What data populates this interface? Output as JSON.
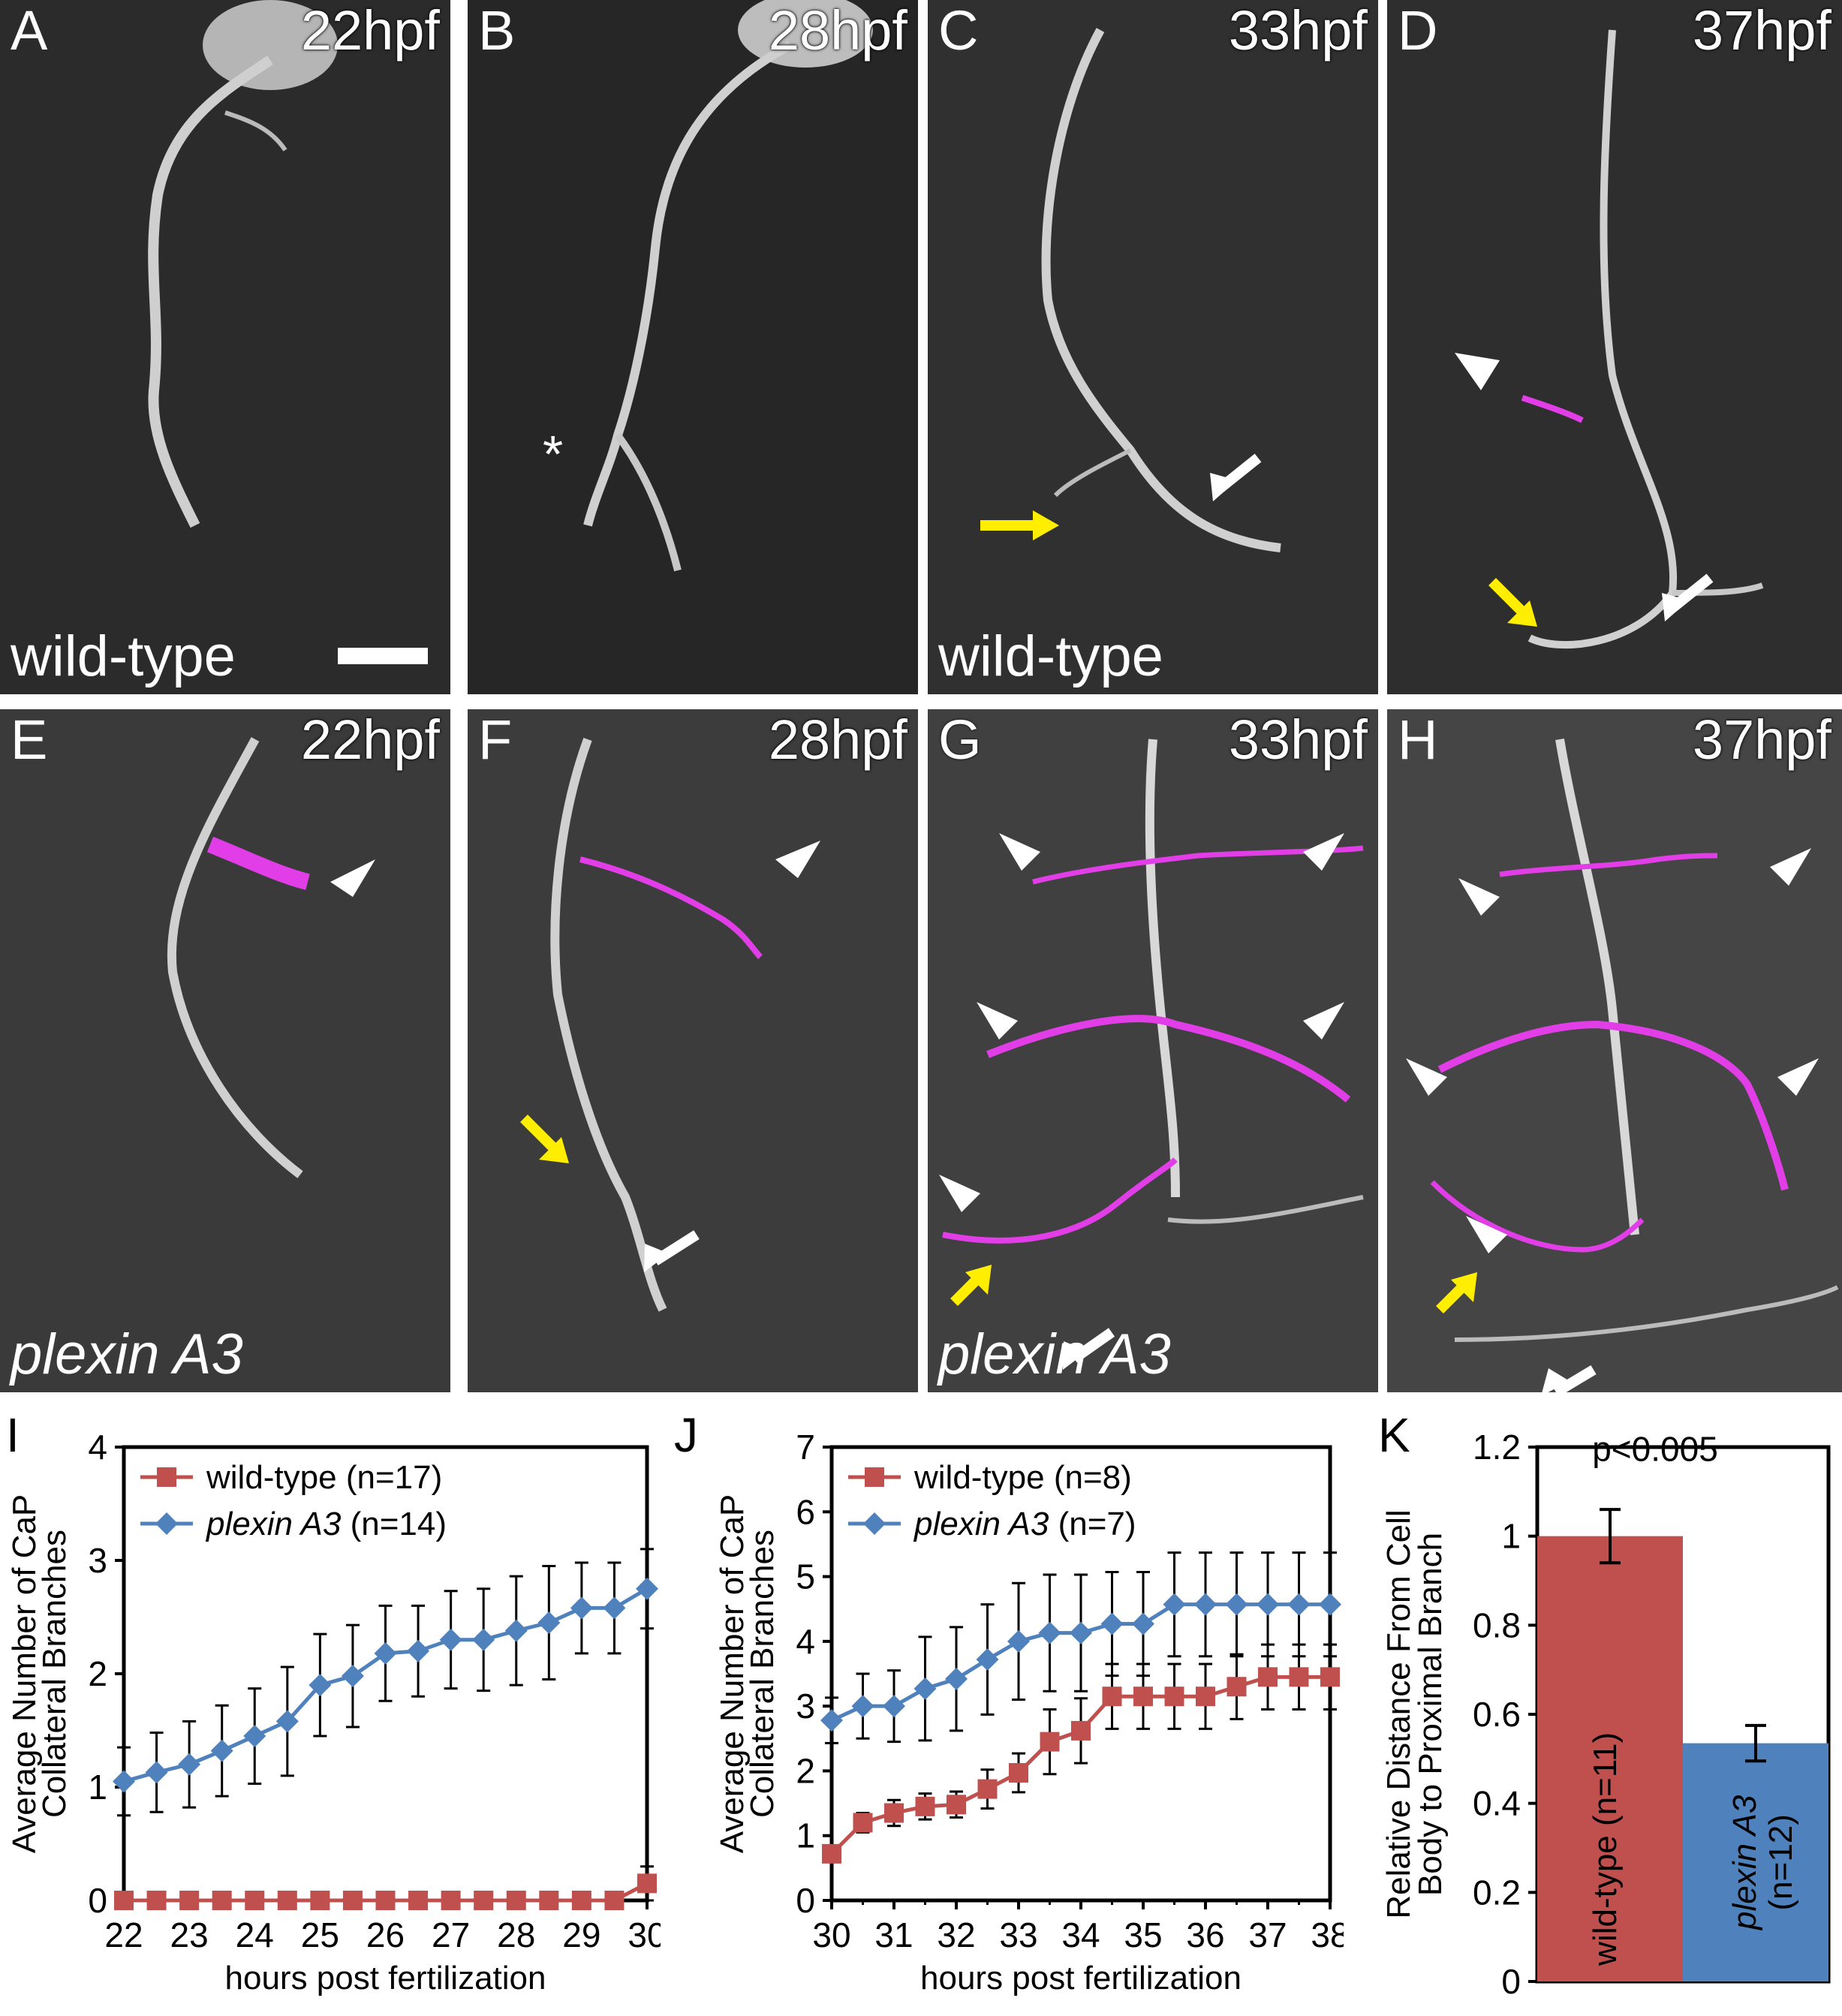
{
  "panels": [
    {
      "letter": "A",
      "time": "22hpf",
      "genotype": "wild-type",
      "italic": false
    },
    {
      "letter": "B",
      "time": "28hpf",
      "genotype": "",
      "italic": false
    },
    {
      "letter": "C",
      "time": "33hpf",
      "genotype": "wild-type",
      "italic": false
    },
    {
      "letter": "D",
      "time": "37hpf",
      "genotype": "",
      "italic": false
    },
    {
      "letter": "E",
      "time": "22hpf",
      "genotype": "plexin A3",
      "italic": true
    },
    {
      "letter": "F",
      "time": "28hpf",
      "genotype": "",
      "italic": false
    },
    {
      "letter": "G",
      "time": "33hpf",
      "genotype": "plexin A3",
      "italic": true
    },
    {
      "letter": "H",
      "time": "37hpf",
      "genotype": "",
      "italic": false
    }
  ],
  "panel_B_marker": "*",
  "chart_data": [
    {
      "id": "I",
      "type": "line",
      "xlabel": "hours post fertilization",
      "ylabel_lines": [
        "Average Number of CaP",
        "Collateral Branches"
      ],
      "xlim": [
        22,
        30
      ],
      "ylim": [
        0,
        4
      ],
      "xticks": [
        22,
        23,
        24,
        25,
        26,
        27,
        28,
        29,
        30
      ],
      "yticks": [
        0,
        1,
        2,
        3,
        4
      ],
      "x": [
        22,
        22.5,
        23,
        23.5,
        24,
        24.5,
        25,
        25.5,
        26,
        26.5,
        27,
        27.5,
        28,
        28.5,
        29,
        29.5,
        30
      ],
      "series": [
        {
          "name": "wild-type",
          "n": "(n=17)",
          "color": "#c0504d",
          "marker": "square",
          "values": [
            0,
            0,
            0,
            0,
            0,
            0,
            0,
            0,
            0,
            0,
            0,
            0,
            0,
            0,
            0,
            0,
            0.15
          ],
          "errors": [
            0,
            0,
            0,
            0,
            0,
            0,
            0,
            0,
            0,
            0,
            0,
            0,
            0,
            0,
            0,
            0,
            0.15
          ]
        },
        {
          "name": "plexin A3",
          "n": "(n=14)",
          "color": "#4f81bd",
          "marker": "diamond",
          "italic": true,
          "values": [
            1.05,
            1.13,
            1.2,
            1.32,
            1.45,
            1.58,
            1.9,
            1.98,
            2.18,
            2.2,
            2.3,
            2.3,
            2.38,
            2.45,
            2.58,
            2.58,
            2.75
          ],
          "errors": [
            0.3,
            0.35,
            0.38,
            0.4,
            0.42,
            0.48,
            0.45,
            0.45,
            0.42,
            0.4,
            0.43,
            0.45,
            0.48,
            0.5,
            0.4,
            0.4,
            0.35
          ]
        }
      ]
    },
    {
      "id": "J",
      "type": "line",
      "xlabel": "hours post fertilization",
      "ylabel_lines": [
        "Average Number of CaP",
        "Collateral Branches"
      ],
      "xlim": [
        30,
        38
      ],
      "ylim": [
        0,
        7
      ],
      "xticks": [
        30,
        31,
        32,
        33,
        34,
        35,
        36,
        37,
        38
      ],
      "yticks": [
        0,
        1,
        2,
        3,
        4,
        5,
        6,
        7
      ],
      "x": [
        30,
        30.5,
        31,
        31.5,
        32,
        32.5,
        33,
        33.5,
        34,
        34.5,
        35,
        35.5,
        36,
        36.5,
        37,
        37.5,
        38
      ],
      "series": [
        {
          "name": "wild-type",
          "n": "(n=8)",
          "color": "#c0504d",
          "marker": "square",
          "values": [
            0.72,
            1.2,
            1.35,
            1.45,
            1.48,
            1.72,
            1.97,
            2.45,
            2.62,
            3.15,
            3.15,
            3.15,
            3.15,
            3.3,
            3.45,
            3.45,
            3.45
          ],
          "errors": [
            0,
            0.15,
            0.2,
            0.2,
            0.2,
            0.3,
            0.3,
            0.5,
            0.5,
            0.5,
            0.5,
            0.5,
            0.5,
            0.5,
            0.5,
            0.5,
            0.5
          ]
        },
        {
          "name": "plexin A3",
          "n": "(n=7)",
          "color": "#4f81bd",
          "marker": "diamond",
          "italic": true,
          "values": [
            2.78,
            3.0,
            3.0,
            3.27,
            3.42,
            3.72,
            4.0,
            4.13,
            4.13,
            4.27,
            4.27,
            4.57,
            4.57,
            4.57,
            4.57,
            4.57,
            4.57
          ],
          "errors": [
            0.35,
            0.5,
            0.55,
            0.8,
            0.8,
            0.85,
            0.9,
            0.9,
            0.9,
            0.8,
            0.8,
            0.8,
            0.8,
            0.8,
            0.8,
            0.8,
            0.8
          ]
        }
      ]
    },
    {
      "id": "K",
      "type": "bar",
      "ylabel_lines": [
        "Relative Distance From Cell",
        "Body to Proximal Branch"
      ],
      "ylim": [
        0,
        1.2
      ],
      "yticks": [
        "0",
        "0.2",
        "0.4",
        "0.6",
        "0.8",
        "1",
        "1.2"
      ],
      "annotation": "p<0.005",
      "bars": [
        {
          "name": "wild-type",
          "n": "(n=11)",
          "value": 1.0,
          "error": 0.06,
          "color": "#c0504d",
          "italic": false
        },
        {
          "name": "plexin A3",
          "n": "(n=12)",
          "value": 0.535,
          "error": 0.04,
          "color": "#4f81bd",
          "italic": true
        }
      ]
    }
  ]
}
